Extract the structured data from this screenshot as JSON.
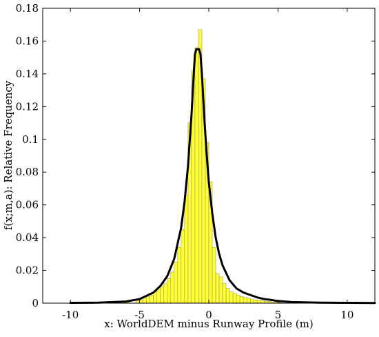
{
  "chart_data": {
    "type": "bar",
    "title": "",
    "xlabel": "x: WorldDEM minus Runway Profile (m)",
    "ylabel": "f(x;m,a): Relative Frequency",
    "xlim": [
      -12,
      12
    ],
    "ylim": [
      0,
      0.18
    ],
    "xticks": [
      -10,
      -5,
      0,
      5,
      10
    ],
    "yticks": [
      0,
      0.02,
      0.04,
      0.06,
      0.08,
      0.1,
      0.12,
      0.14,
      0.16,
      0.18
    ],
    "xtick_labels": [
      "-10",
      "-5",
      "0",
      "5",
      "10"
    ],
    "ytick_labels": [
      "0",
      "0.02",
      "0.04",
      "0.06",
      "0.08",
      "0.1",
      "0.12",
      "0.14",
      "0.16",
      "0.18"
    ],
    "grid": false,
    "legend": "none",
    "bin_width": 0.25,
    "bar_color": "#ffff33",
    "bar_edge_color": "#9a9a60",
    "curve_color": "#000000",
    "histogram": {
      "bin_left_edges": [
        -10.0,
        -9.0,
        -8.0,
        -7.0,
        -6.0,
        -5.25,
        -5.0,
        -4.75,
        -4.5,
        -4.25,
        -4.0,
        -3.75,
        -3.5,
        -3.25,
        -3.0,
        -2.75,
        -2.5,
        -2.25,
        -2.0,
        -1.75,
        -1.5,
        -1.25,
        -1.0,
        -0.75,
        -0.5,
        -0.25,
        0.0,
        0.25,
        0.5,
        0.75,
        1.0,
        1.25,
        1.5,
        1.75,
        2.0,
        2.25,
        2.5,
        2.75,
        3.0,
        3.25,
        3.5,
        3.75,
        4.0,
        4.25,
        4.5,
        4.75,
        5.0,
        6.0,
        7.0,
        8.0,
        9.0,
        10.0,
        11.0
      ],
      "frequencies": [
        0.0002,
        0.0002,
        0.0002,
        0.0003,
        0.0005,
        0.0015,
        0.002,
        0.003,
        0.004,
        0.005,
        0.007,
        0.0085,
        0.01,
        0.012,
        0.015,
        0.019,
        0.025,
        0.034,
        0.045,
        0.066,
        0.11,
        0.142,
        0.156,
        0.167,
        0.137,
        0.098,
        0.074,
        0.034,
        0.018,
        0.016,
        0.012,
        0.009,
        0.007,
        0.006,
        0.005,
        0.004,
        0.0035,
        0.003,
        0.0025,
        0.002,
        0.0018,
        0.0015,
        0.0012,
        0.001,
        0.0008,
        0.0006,
        0.0004,
        0.0003,
        0.0002,
        0.0002,
        0.0001,
        0.0001,
        0.0001
      ]
    },
    "fit_curve": {
      "x": [
        -10,
        -8,
        -6,
        -5,
        -4,
        -3.5,
        -3,
        -2.5,
        -2,
        -1.75,
        -1.5,
        -1.25,
        -1.1,
        -1.0,
        -0.9,
        -0.8,
        -0.7,
        -0.6,
        -0.5,
        -0.4,
        -0.3,
        -0.2,
        -0.1,
        0,
        0.25,
        0.5,
        0.75,
        1,
        1.5,
        2,
        2.5,
        3,
        3.5,
        4,
        4.5,
        5,
        6,
        8,
        10,
        12
      ],
      "y": [
        0.0002,
        0.0003,
        0.001,
        0.0025,
        0.0065,
        0.0105,
        0.0165,
        0.027,
        0.046,
        0.062,
        0.084,
        0.115,
        0.138,
        0.152,
        0.155,
        0.155,
        0.155,
        0.152,
        0.14,
        0.125,
        0.11,
        0.097,
        0.085,
        0.074,
        0.055,
        0.04,
        0.03,
        0.023,
        0.014,
        0.009,
        0.0065,
        0.005,
        0.0035,
        0.0025,
        0.002,
        0.0013,
        0.0007,
        0.0003,
        0.0002,
        0.0001
      ]
    }
  }
}
